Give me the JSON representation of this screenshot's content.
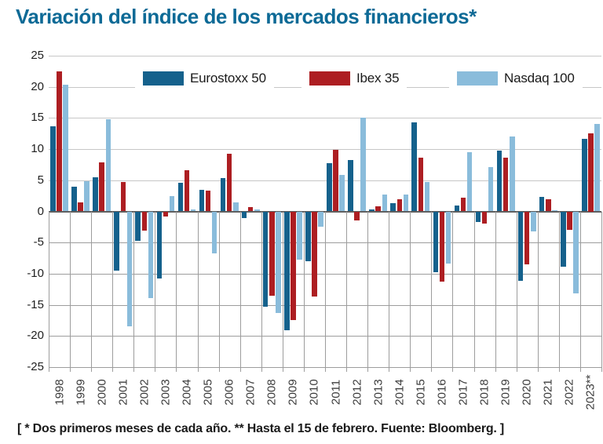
{
  "title": "Variación del índice de los mercados financieros*",
  "footnote": "[ * Dos primeros meses de cada año. ** Hasta el 15 de febrero. Fuente: Bloomberg. ]",
  "colors": {
    "title_blue": "#0d6a96",
    "eurostoxx": "#15618c",
    "ibex": "#ad1e22",
    "nasdaq": "#8abcdb",
    "grid_light": "#c7c7c7",
    "grid_dark": "#9d9d9d",
    "zero_axis": "#5f5f5f"
  },
  "chart_data": {
    "type": "bar",
    "title": "Variación del índice de los mercados financieros*",
    "categories": [
      "1998",
      "1999",
      "2000",
      "2001",
      "2002",
      "2003",
      "2004",
      "2005",
      "2006",
      "2007",
      "2008",
      "2009",
      "2010",
      "2011",
      "2012",
      "2013",
      "2014",
      "2015",
      "2016",
      "2017",
      "2018",
      "2019",
      "2020",
      "2021",
      "2022",
      "2023**"
    ],
    "series": [
      {
        "name": "Eurostoxx 50",
        "color": "#15618c",
        "values": [
          13.7,
          4.0,
          5.5,
          -9.5,
          -4.7,
          -10.8,
          4.6,
          3.5,
          5.3,
          -1.1,
          -15.3,
          -19.1,
          -8.0,
          7.7,
          8.2,
          0.3,
          1.3,
          14.3,
          -9.8,
          0.9,
          -1.7,
          9.7,
          -11.2,
          2.3,
          -8.9,
          11.7
        ]
      },
      {
        "name": "Ibex 35",
        "color": "#ad1e22",
        "values": [
          22.5,
          1.4,
          7.9,
          4.7,
          -3.1,
          -0.8,
          6.6,
          3.3,
          9.3,
          0.7,
          -13.5,
          -17.4,
          -13.7,
          9.9,
          -1.4,
          0.8,
          1.9,
          8.6,
          -11.3,
          2.2,
          -1.9,
          8.6,
          -8.5,
          1.9,
          -3.0,
          12.5
        ]
      },
      {
        "name": "Nasdaq 100",
        "color": "#8abcdb",
        "values": [
          20.4,
          4.8,
          14.8,
          -18.4,
          -13.9,
          2.4,
          0.3,
          -6.8,
          1.5,
          0.3,
          -16.3,
          -7.8,
          -2.4,
          5.8,
          15.0,
          2.7,
          2.7,
          4.7,
          -8.4,
          9.5,
          7.1,
          12.0,
          -3.2,
          0.2,
          -13.1,
          14.1
        ]
      }
    ],
    "ylim": [
      -25,
      25
    ],
    "yticks": [
      25,
      20,
      15,
      10,
      5,
      0,
      -5,
      -10,
      -15,
      -20,
      -25
    ],
    "grid": "horizontal lines at every 5; vertical year-separator lines only below zero",
    "legend_position": "top-inside"
  }
}
